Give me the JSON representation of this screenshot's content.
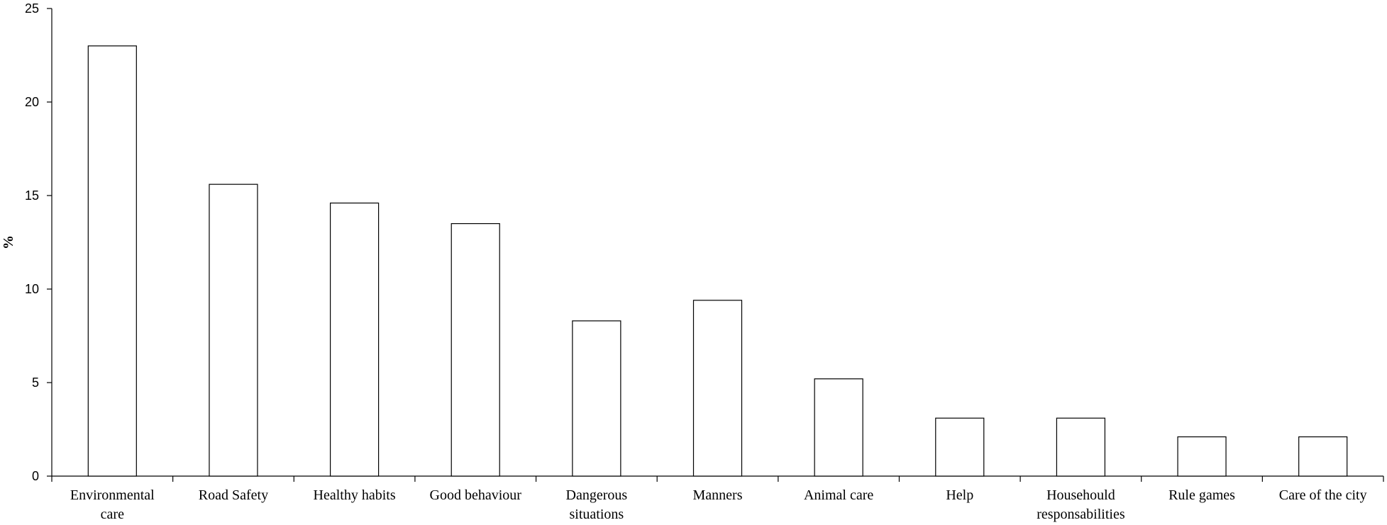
{
  "chart_data": {
    "type": "bar",
    "categories": [
      [
        "Environmental",
        "care"
      ],
      [
        "Road Safety"
      ],
      [
        "Healthy habits"
      ],
      [
        "Good behaviour"
      ],
      [
        "Dangerous",
        "situations"
      ],
      [
        "Manners"
      ],
      [
        "Animal care"
      ],
      [
        "Help"
      ],
      [
        "Househould",
        "responsabilities"
      ],
      [
        "Rule games"
      ],
      [
        "Care of the city"
      ]
    ],
    "values": [
      23.0,
      15.6,
      14.6,
      13.5,
      8.3,
      9.4,
      5.2,
      3.1,
      3.1,
      2.1,
      2.1
    ],
    "ylabel": "%",
    "xlabel": "",
    "ylim": [
      0,
      25
    ],
    "yticks": [
      "0",
      "5",
      "10",
      "15",
      "20",
      "25"
    ],
    "grid": false,
    "colors": {
      "bar_fill": "#ffffff",
      "bar_stroke": "#000000"
    }
  }
}
